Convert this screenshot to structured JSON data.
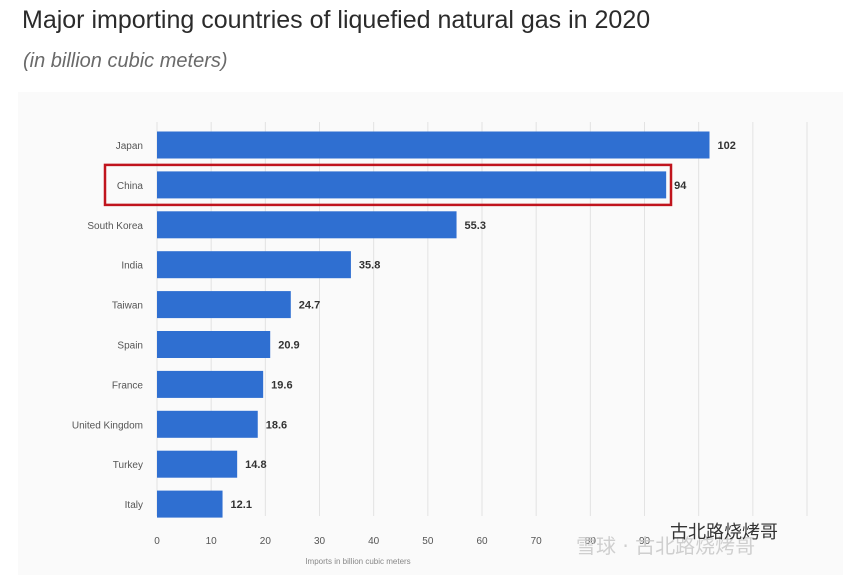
{
  "title": "Major importing countries of liquefied natural gas in 2020",
  "subtitle": "(in billion cubic meters)",
  "watermark": {
    "line1": "雪球 · 古北路烧烤哥",
    "line2": "古北路烧烤哥"
  },
  "colors": {
    "bar": "#2f6fd1",
    "highlight_box": "#c0141d",
    "grid": "#e3e3e3"
  },
  "chart_data": {
    "type": "bar",
    "orientation": "horizontal",
    "categories": [
      "Japan",
      "China",
      "South Korea",
      "India",
      "Taiwan",
      "Spain",
      "France",
      "United Kingdom",
      "Turkey",
      "Italy"
    ],
    "values": [
      102,
      94,
      55.3,
      35.8,
      24.7,
      20.9,
      19.6,
      18.6,
      14.8,
      12.1
    ],
    "value_labels": [
      "102",
      "94",
      "55.3",
      "35.8",
      "24.7",
      "20.9",
      "19.6",
      "18.6",
      "14.8",
      "12.1"
    ],
    "highlighted_category": "China",
    "xlabel": "Imports in billion cubic meters",
    "xlim": [
      0,
      120
    ],
    "xticks": [
      0,
      10,
      20,
      30,
      40,
      50,
      60,
      70,
      80,
      90
    ],
    "xtick_labels": [
      "0",
      "10",
      "20",
      "30",
      "40",
      "50",
      "60",
      "70",
      "80",
      "90"
    ],
    "grid": true
  }
}
